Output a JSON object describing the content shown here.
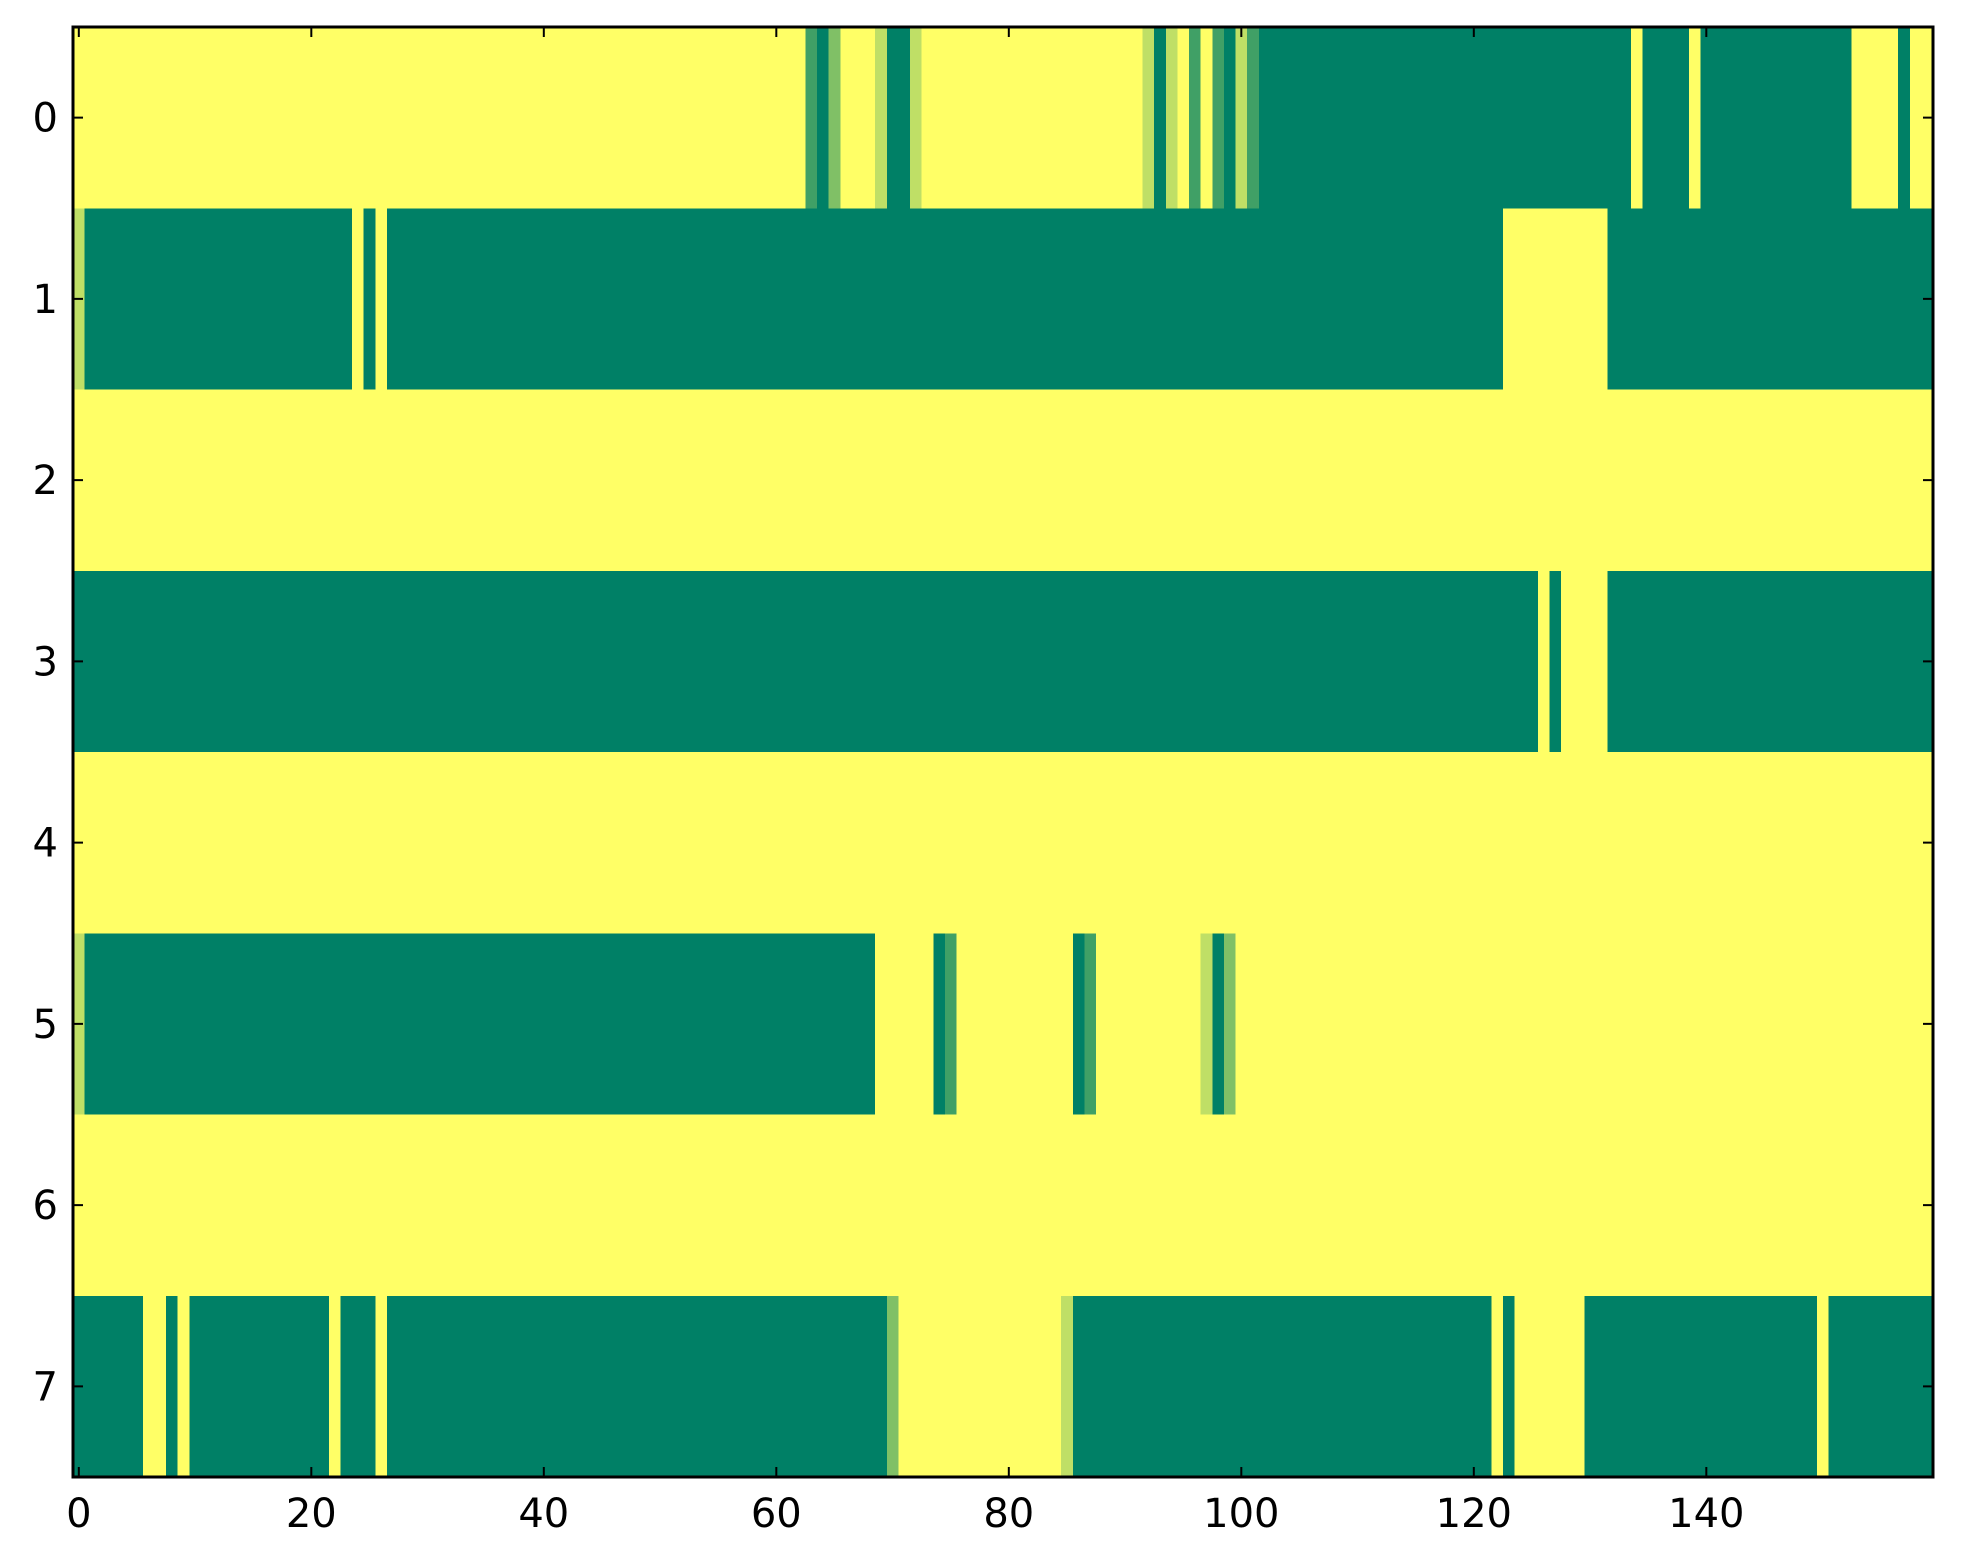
{
  "chart_data": {
    "type": "heatmap",
    "title": "",
    "xlabel": "",
    "ylabel": "",
    "xlim": [
      -0.5,
      159.5
    ],
    "ylim": [
      7.5,
      -0.5
    ],
    "grid": false,
    "colormap": {
      "name": "summer",
      "low": "#008066",
      "high": "#ffff66",
      "mid_shades": {
        "0.25": "#408066",
        "0.5": "#80a066",
        "0.75": "#c0df66"
      }
    },
    "x_ticks": [
      0,
      20,
      40,
      60,
      80,
      100,
      120,
      140
    ],
    "x_tick_labels": [
      "0",
      "20",
      "40",
      "60",
      "80",
      "100",
      "120",
      "140"
    ],
    "y_ticks": [
      0,
      1,
      2,
      3,
      4,
      5,
      6,
      7
    ],
    "y_tick_labels": [
      "0",
      "1",
      "2",
      "3",
      "4",
      "5",
      "6",
      "7"
    ],
    "n_rows": 8,
    "n_cols": 160,
    "default_value": 1,
    "rows": [
      {
        "row": 0,
        "segments": [
          [
            63,
            63,
            0.25
          ],
          [
            64,
            64,
            0
          ],
          [
            65,
            65,
            0.5
          ],
          [
            69,
            69,
            0.75
          ],
          [
            70,
            70,
            0
          ],
          [
            71,
            71,
            0
          ],
          [
            72,
            72,
            0.75
          ],
          [
            92,
            92,
            0.75
          ],
          [
            93,
            93,
            0
          ],
          [
            94,
            94,
            0.75
          ],
          [
            96,
            96,
            0.25
          ],
          [
            98,
            98,
            0.25
          ],
          [
            99,
            99,
            0
          ],
          [
            100,
            100,
            0.75
          ],
          [
            101,
            101,
            0.25
          ],
          [
            102,
            133,
            0
          ],
          [
            135,
            138,
            0
          ],
          [
            140,
            152,
            0
          ],
          [
            157,
            157,
            0
          ]
        ]
      },
      {
        "row": 1,
        "segments": [
          [
            0,
            0,
            0.75
          ],
          [
            1,
            23,
            0
          ],
          [
            25,
            25,
            0
          ],
          [
            27,
            122,
            0
          ],
          [
            132,
            159,
            0
          ]
        ]
      },
      {
        "row": 2,
        "segments": []
      },
      {
        "row": 3,
        "segments": [
          [
            0,
            125,
            0
          ],
          [
            127,
            127,
            0
          ],
          [
            132,
            159,
            0
          ]
        ]
      },
      {
        "row": 4,
        "segments": []
      },
      {
        "row": 5,
        "segments": [
          [
            0,
            0,
            0.75
          ],
          [
            1,
            68,
            0
          ],
          [
            74,
            74,
            0
          ],
          [
            75,
            75,
            0.25
          ],
          [
            86,
            86,
            0
          ],
          [
            87,
            87,
            0.25
          ],
          [
            97,
            97,
            0.75
          ],
          [
            98,
            98,
            0
          ],
          [
            99,
            99,
            0.5
          ]
        ]
      },
      {
        "row": 6,
        "segments": []
      },
      {
        "row": 7,
        "segments": [
          [
            0,
            5,
            0
          ],
          [
            8,
            8,
            0
          ],
          [
            10,
            21,
            0
          ],
          [
            23,
            25,
            0
          ],
          [
            27,
            69,
            0
          ],
          [
            70,
            70,
            0.5
          ],
          [
            85,
            85,
            0.75
          ],
          [
            86,
            121,
            0
          ],
          [
            123,
            123,
            0
          ],
          [
            130,
            149,
            0
          ],
          [
            151,
            159,
            0
          ]
        ]
      }
    ]
  }
}
